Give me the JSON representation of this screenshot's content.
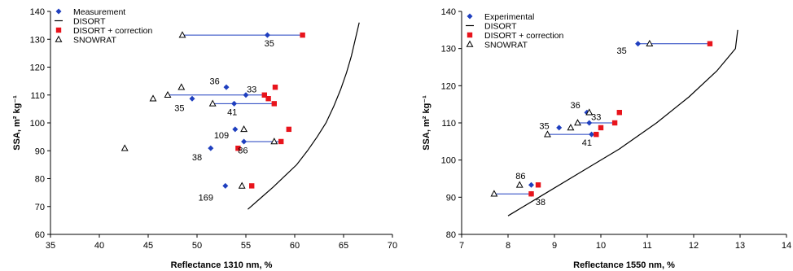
{
  "chart_data": [
    {
      "type": "scatter",
      "xlabel": "Reflectance 1310 nm,  %",
      "ylabel": "SSA,  m² kg⁻¹",
      "xlim": [
        35,
        70
      ],
      "ylim": [
        60,
        140
      ],
      "xticks": [
        "35",
        "40",
        "45",
        "50",
        "55",
        "60",
        "65",
        "70"
      ],
      "yticks": [
        "60",
        "70",
        "80",
        "90",
        "100",
        "110",
        "120",
        "130",
        "140"
      ],
      "grid": false,
      "legend_position": "top-left",
      "series": [
        {
          "name": "Measurement",
          "marker": "diamond",
          "color": "#1f3fbf",
          "points": [
            [
              57.2,
              131.5
            ],
            [
              53.0,
              112.8
            ],
            [
              55.0,
              110.0
            ],
            [
              49.5,
              108.7
            ],
            [
              53.8,
              106.9
            ],
            [
              53.9,
              97.7
            ],
            [
              54.8,
              93.3
            ],
            [
              51.4,
              90.9
            ],
            [
              52.9,
              77.4
            ]
          ]
        },
        {
          "name": "DISORT",
          "marker": "line",
          "color": "#000000",
          "points": [
            [
              55.2,
              69
            ],
            [
              56.5,
              73
            ],
            [
              57.8,
              77
            ],
            [
              59.0,
              81
            ],
            [
              60.2,
              85
            ],
            [
              61.3,
              90
            ],
            [
              62.3,
              95
            ],
            [
              63.2,
              100
            ],
            [
              64.0,
              106
            ],
            [
              64.7,
              112
            ],
            [
              65.3,
              118
            ],
            [
              65.8,
              124
            ],
            [
              66.2,
              130
            ],
            [
              66.6,
              136
            ]
          ]
        },
        {
          "name": "DISORT + correction",
          "marker": "square",
          "color": "#e8141c",
          "points": [
            [
              60.8,
              131.5
            ],
            [
              58.0,
              112.8
            ],
            [
              57.3,
              108.7
            ],
            [
              57.9,
              106.9
            ],
            [
              59.4,
              97.7
            ],
            [
              58.6,
              93.3
            ],
            [
              54.2,
              90.9
            ],
            [
              55.6,
              77.4
            ],
            [
              56.9,
              110.0
            ]
          ]
        },
        {
          "name": "SNOWRAT",
          "marker": "triangle",
          "color": "#000000",
          "points": [
            [
              48.5,
              131.5
            ],
            [
              48.4,
              112.8
            ],
            [
              45.5,
              108.7
            ],
            [
              51.6,
              106.9
            ],
            [
              54.8,
              97.7
            ],
            [
              57.9,
              93.3
            ],
            [
              42.6,
              90.9
            ],
            [
              54.6,
              77.4
            ],
            [
              47.0,
              110.0
            ]
          ]
        }
      ],
      "connectors": [
        [
          [
            48.5,
            131.5
          ],
          [
            60.8,
            131.5
          ]
        ],
        [
          [
            47.0,
            110.0
          ],
          [
            56.9,
            110.0
          ]
        ],
        [
          [
            51.6,
            106.9
          ],
          [
            57.9,
            106.9
          ]
        ],
        [
          [
            54.8,
            93.3
          ],
          [
            58.6,
            93.3
          ]
        ]
      ],
      "annotations": [
        {
          "text": "35",
          "x": 57.4,
          "y": 127.5
        },
        {
          "text": "36",
          "x": 51.8,
          "y": 113.8
        },
        {
          "text": "33",
          "x": 55.6,
          "y": 111.0
        },
        {
          "text": "35",
          "x": 48.2,
          "y": 104.3
        },
        {
          "text": "41",
          "x": 53.6,
          "y": 102.8
        },
        {
          "text": "109",
          "x": 52.5,
          "y": 94.4
        },
        {
          "text": "86",
          "x": 54.7,
          "y": 89.1
        },
        {
          "text": "38",
          "x": 50.0,
          "y": 86.6
        },
        {
          "text": "169",
          "x": 50.9,
          "y": 72.1
        }
      ]
    },
    {
      "type": "scatter",
      "xlabel": "Reflectance 1550 nm,  %",
      "ylabel": "SSA,  m² kg⁻¹",
      "xlim": [
        7,
        14
      ],
      "ylim": [
        80,
        140
      ],
      "xticks": [
        "7",
        "8",
        "9",
        "10",
        "11",
        "12",
        "13",
        "14"
      ],
      "yticks": [
        "80",
        "90",
        "100",
        "110",
        "120",
        "130",
        "140"
      ],
      "grid": false,
      "legend_position": "top-left",
      "series": [
        {
          "name": "Experimental",
          "marker": "diamond",
          "color": "#1f3fbf",
          "points": [
            [
              10.8,
              131.3
            ],
            [
              9.7,
              112.8
            ],
            [
              9.75,
              110.0
            ],
            [
              9.1,
              108.7
            ],
            [
              9.8,
              106.9
            ],
            [
              8.5,
              93.3
            ],
            [
              8.5,
              90.9
            ]
          ]
        },
        {
          "name": "DISORT",
          "marker": "line",
          "color": "#000000",
          "points": [
            [
              8.0,
              85
            ],
            [
              8.8,
              91
            ],
            [
              9.6,
              97
            ],
            [
              10.4,
              103
            ],
            [
              11.2,
              110
            ],
            [
              11.9,
              117
            ],
            [
              12.5,
              124
            ],
            [
              12.9,
              130
            ],
            [
              12.95,
              135
            ]
          ]
        },
        {
          "name": "DISORT + correction",
          "marker": "square",
          "color": "#e8141c",
          "points": [
            [
              12.35,
              131.3
            ],
            [
              10.4,
              112.8
            ],
            [
              10.3,
              110.0
            ],
            [
              10.0,
              108.7
            ],
            [
              9.9,
              106.9
            ],
            [
              8.65,
              93.3
            ],
            [
              8.5,
              90.9
            ]
          ]
        },
        {
          "name": "SNOWRAT",
          "marker": "triangle",
          "color": "#000000",
          "points": [
            [
              11.05,
              131.3
            ],
            [
              9.75,
              112.8
            ],
            [
              9.5,
              110.0
            ],
            [
              9.35,
              108.7
            ],
            [
              8.85,
              106.9
            ],
            [
              8.25,
              93.3
            ],
            [
              7.7,
              90.9
            ]
          ]
        }
      ],
      "connectors": [
        [
          [
            10.8,
            131.3
          ],
          [
            12.35,
            131.3
          ]
        ],
        [
          [
            9.5,
            110.0
          ],
          [
            10.3,
            110.0
          ]
        ],
        [
          [
            8.85,
            106.9
          ],
          [
            9.8,
            106.9
          ]
        ],
        [
          [
            7.7,
            90.9
          ],
          [
            8.5,
            90.9
          ]
        ]
      ],
      "annotations": [
        {
          "text": "35",
          "x": 10.45,
          "y": 128.6
        },
        {
          "text": "36",
          "x": 9.45,
          "y": 113.9
        },
        {
          "text": "33",
          "x": 9.9,
          "y": 110.8
        },
        {
          "text": "35",
          "x": 8.78,
          "y": 108.4
        },
        {
          "text": "41",
          "x": 9.7,
          "y": 103.9
        },
        {
          "text": "86",
          "x": 8.27,
          "y": 94.9
        },
        {
          "text": "38",
          "x": 8.7,
          "y": 87.9
        }
      ]
    }
  ]
}
